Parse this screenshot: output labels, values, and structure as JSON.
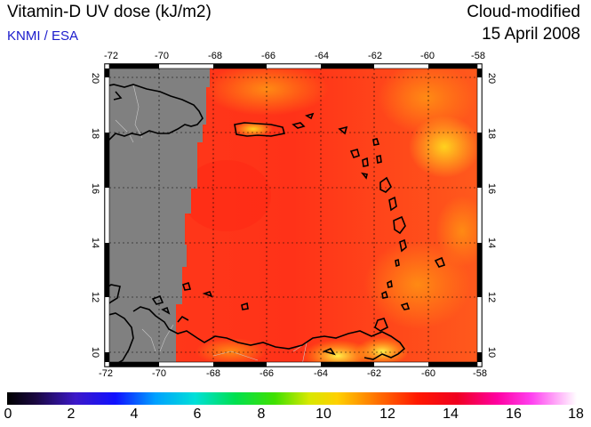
{
  "header": {
    "title": "Vitamin-D UV dose (kJ/m2)",
    "credit": "KNMI / ESA",
    "product": "Cloud-modified",
    "date": "15 April 2008"
  },
  "map": {
    "lon_ticks": [
      "-72",
      "-70",
      "-68",
      "-66",
      "-64",
      "-62",
      "-60",
      "-58"
    ],
    "lat_ticks": [
      "20",
      "18",
      "16",
      "14",
      "12",
      "10"
    ],
    "lon_range": [
      -72,
      -58
    ],
    "lat_range": [
      9.5,
      20.5
    ],
    "no_data_color": "#808080",
    "grid": "dotted"
  },
  "colorbar": {
    "labels": [
      "0",
      "2",
      "4",
      "6",
      "8",
      "10",
      "12",
      "14",
      "16",
      "18"
    ],
    "range": [
      0,
      18
    ]
  }
}
